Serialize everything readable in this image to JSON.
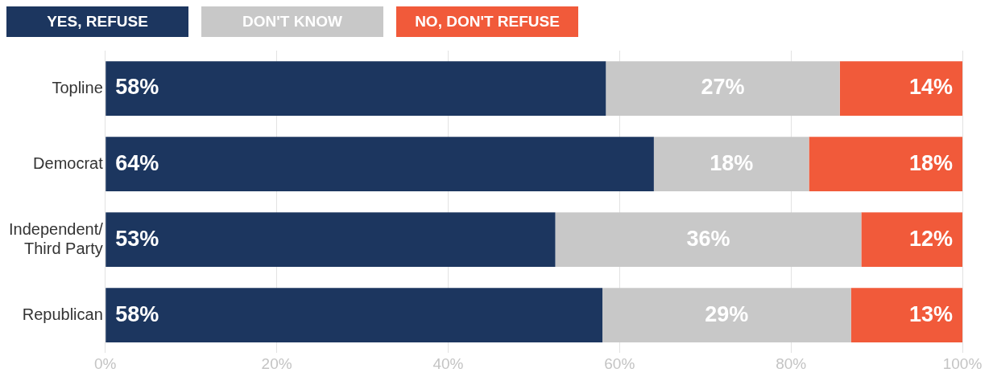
{
  "chart_data": {
    "type": "bar",
    "orientation": "horizontal",
    "stacked": true,
    "categories": [
      "Topline",
      "Democrat",
      "Independent/\nThird Party",
      "Republican"
    ],
    "series": [
      {
        "name": "YES, REFUSE",
        "color": "#1c365f",
        "values": [
          58.4,
          64.0,
          52.5,
          58.0
        ],
        "value_labels": [
          "58%",
          "64%",
          "53%",
          "58%"
        ]
      },
      {
        "name": "DON'T KNOW",
        "color": "#c8c8c8",
        "values": [
          27.3,
          18.1,
          35.7,
          29.0
        ],
        "value_labels": [
          "27%",
          "18%",
          "36%",
          "29%"
        ]
      },
      {
        "name": "NO, DON'T REFUSE",
        "color": "#f15a3a",
        "values": [
          14.3,
          17.9,
          11.8,
          13.0
        ],
        "value_labels": [
          "14%",
          "18%",
          "12%",
          "13%"
        ]
      }
    ],
    "xlim": [
      0,
      100
    ],
    "xticks": [
      {
        "value": 0,
        "label": "0%"
      },
      {
        "value": 20,
        "label": "20%"
      },
      {
        "value": 40,
        "label": "40%"
      },
      {
        "value": 60,
        "label": "60%"
      },
      {
        "value": 80,
        "label": "80%"
      },
      {
        "value": 100,
        "label": "100%"
      }
    ],
    "grid": "x",
    "legend": "top left"
  }
}
